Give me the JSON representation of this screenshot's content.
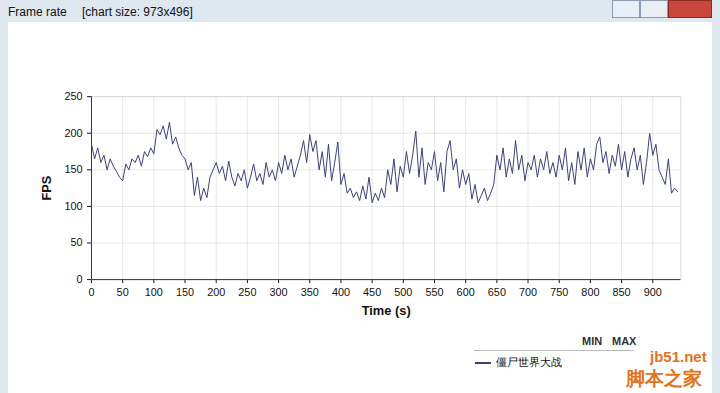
{
  "chart_data": {
    "type": "line",
    "title": "Frame rate",
    "subtitle": "[chart size: 973x496]",
    "x_label": "Time (s)",
    "y_label": "FPS",
    "legend_header": [
      "MIN",
      "MAX"
    ],
    "watermark": [
      "jb51.net",
      "脚本之家"
    ],
    "xlim": [
      0,
      945
    ],
    "xticks": [
      0,
      50,
      100,
      150,
      200,
      250,
      300,
      350,
      400,
      450,
      500,
      550,
      600,
      650,
      700,
      750,
      800,
      850,
      900
    ],
    "ylim": [
      0,
      250
    ],
    "yticks": [
      0,
      50,
      100,
      150,
      200,
      250
    ],
    "grid": true,
    "x": [
      0,
      5,
      10,
      15,
      20,
      25,
      30,
      35,
      40,
      45,
      50,
      55,
      60,
      65,
      70,
      75,
      80,
      85,
      90,
      95,
      100,
      105,
      110,
      115,
      120,
      125,
      130,
      135,
      140,
      145,
      150,
      155,
      160,
      165,
      170,
      175,
      180,
      185,
      190,
      195,
      200,
      205,
      210,
      215,
      220,
      225,
      230,
      235,
      240,
      245,
      250,
      255,
      260,
      265,
      270,
      275,
      280,
      285,
      290,
      295,
      300,
      305,
      310,
      315,
      320,
      325,
      330,
      335,
      340,
      345,
      350,
      355,
      360,
      365,
      370,
      375,
      380,
      385,
      390,
      395,
      400,
      405,
      410,
      415,
      420,
      425,
      430,
      435,
      440,
      445,
      450,
      455,
      460,
      465,
      470,
      475,
      480,
      485,
      490,
      495,
      500,
      505,
      510,
      515,
      520,
      525,
      530,
      535,
      540,
      545,
      550,
      555,
      560,
      565,
      570,
      575,
      580,
      585,
      590,
      595,
      600,
      605,
      610,
      615,
      620,
      625,
      630,
      635,
      640,
      645,
      650,
      655,
      660,
      665,
      670,
      675,
      680,
      685,
      690,
      695,
      700,
      705,
      710,
      715,
      720,
      725,
      730,
      735,
      740,
      745,
      750,
      755,
      760,
      765,
      770,
      775,
      780,
      785,
      790,
      795,
      800,
      805,
      810,
      815,
      820,
      825,
      830,
      835,
      840,
      845,
      850,
      855,
      860,
      865,
      870,
      875,
      880,
      885,
      890,
      895,
      900,
      905,
      910,
      915,
      920,
      925,
      930,
      935,
      940
    ],
    "series": [
      {
        "name": "僵尸世界大战",
        "color": "#3c3f78",
        "values": [
          185,
          165,
          180,
          160,
          170,
          150,
          165,
          155,
          148,
          140,
          135,
          158,
          150,
          165,
          160,
          170,
          155,
          175,
          168,
          180,
          172,
          205,
          198,
          210,
          192,
          215,
          185,
          195,
          180,
          170,
          165,
          150,
          160,
          115,
          140,
          108,
          125,
          112,
          140,
          150,
          160,
          145,
          155,
          135,
          162,
          140,
          128,
          145,
          135,
          150,
          125,
          140,
          158,
          135,
          145,
          130,
          160,
          140,
          150,
          135,
          160,
          145,
          170,
          150,
          165,
          140,
          155,
          170,
          190,
          160,
          198,
          175,
          190,
          150,
          175,
          140,
          185,
          135,
          160,
          188,
          130,
          145,
          118,
          125,
          112,
          120,
          108,
          128,
          110,
          140,
          105,
          118,
          108,
          125,
          112,
          150,
          130,
          165,
          120,
          155,
          140,
          175,
          145,
          170,
          203,
          140,
          180,
          130,
          160,
          150,
          175,
          135,
          160,
          120,
          175,
          190,
          150,
          165,
          125,
          150,
          130,
          145,
          110,
          130,
          105,
          115,
          125,
          108,
          118,
          130,
          170,
          150,
          180,
          140,
          165,
          145,
          190,
          150,
          170,
          135,
          160,
          150,
          170,
          140,
          165,
          150,
          175,
          145,
          160,
          140,
          170,
          150,
          180,
          135,
          160,
          130,
          175,
          150,
          180,
          140,
          165,
          150,
          185,
          195,
          160,
          175,
          145,
          170,
          155,
          185,
          150,
          175,
          140,
          165,
          180,
          150,
          170,
          130,
          160,
          200,
          170,
          185,
          150,
          140,
          130,
          165,
          118,
          125,
          120
        ]
      }
    ]
  }
}
